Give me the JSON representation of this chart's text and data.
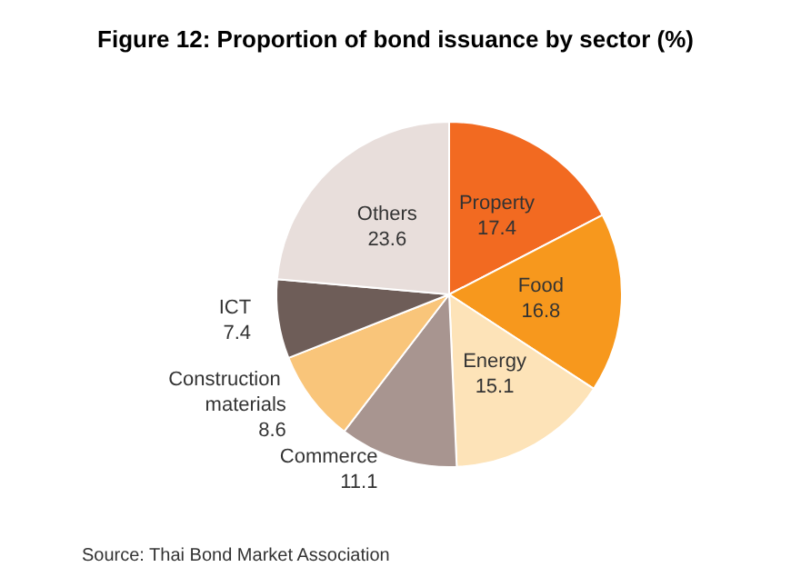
{
  "chart_data": {
    "type": "pie",
    "title": "Figure 12: Proportion of bond issuance by sector (%)",
    "categories": [
      "Property",
      "Food",
      "Energy",
      "Commerce",
      "Construction materials",
      "ICT",
      "Others"
    ],
    "values": [
      17.4,
      16.8,
      15.1,
      11.1,
      8.6,
      7.4,
      23.6
    ],
    "colors": [
      "#f26a21",
      "#f7981d",
      "#fde3b8",
      "#a89590",
      "#f9c57a",
      "#6e5d58",
      "#e8dedb"
    ],
    "data_labels": true,
    "legend": false,
    "annotations": [
      "Source: Thai Bond Market Association"
    ]
  }
}
